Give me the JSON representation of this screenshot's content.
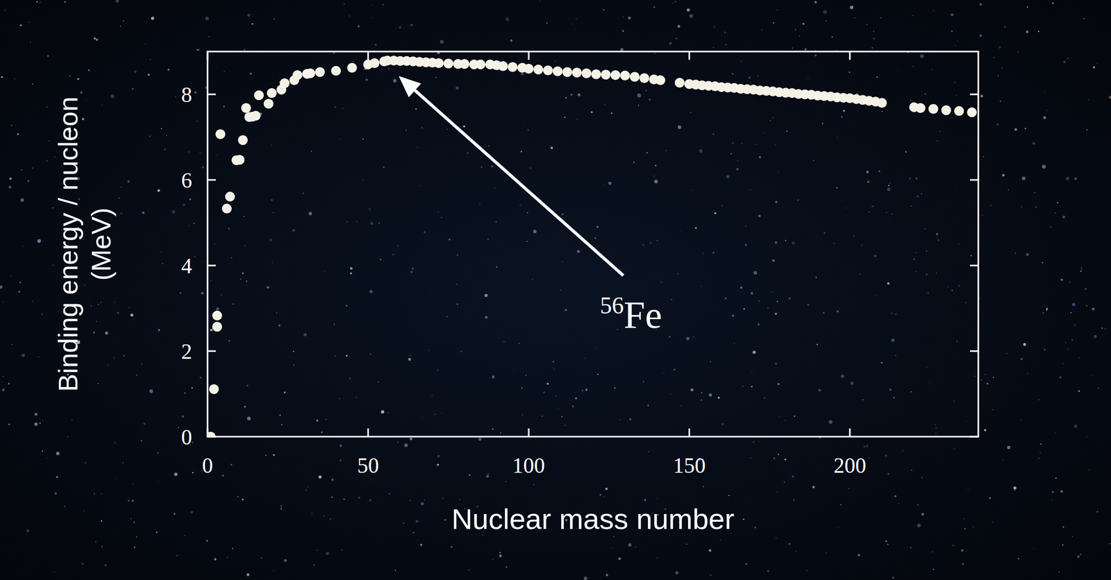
{
  "chart_data": {
    "type": "scatter",
    "x": [
      1,
      2,
      3,
      3,
      4,
      6,
      7,
      9,
      10,
      11,
      12,
      13,
      14,
      15,
      16,
      19,
      20,
      23,
      24,
      27,
      28,
      31,
      32,
      35,
      40,
      45,
      50,
      52,
      55,
      56,
      58,
      60,
      62,
      64,
      66,
      68,
      70,
      72,
      75,
      78,
      80,
      83,
      85,
      88,
      90,
      92,
      95,
      98,
      100,
      103,
      106,
      109,
      112,
      115,
      118,
      121,
      124,
      127,
      130,
      133,
      136,
      139,
      141,
      147,
      150,
      152,
      154,
      156,
      158,
      160,
      162,
      164,
      166,
      168,
      170,
      172,
      174,
      176,
      178,
      180,
      182,
      184,
      186,
      188,
      190,
      192,
      194,
      196,
      198,
      200,
      202,
      204,
      206,
      208,
      210,
      220,
      222,
      226,
      230,
      234,
      238
    ],
    "values": [
      0,
      1.11,
      2.83,
      2.57,
      7.07,
      5.33,
      5.61,
      6.46,
      6.47,
      6.93,
      7.68,
      7.47,
      7.48,
      7.5,
      7.98,
      7.78,
      8.03,
      8.11,
      8.26,
      8.33,
      8.45,
      8.48,
      8.49,
      8.52,
      8.55,
      8.62,
      8.7,
      8.73,
      8.77,
      8.79,
      8.79,
      8.78,
      8.78,
      8.77,
      8.76,
      8.75,
      8.74,
      8.73,
      8.72,
      8.71,
      8.71,
      8.7,
      8.7,
      8.7,
      8.68,
      8.66,
      8.64,
      8.62,
      8.6,
      8.58,
      8.56,
      8.54,
      8.52,
      8.51,
      8.49,
      8.47,
      8.46,
      8.45,
      8.44,
      8.41,
      8.38,
      8.35,
      8.33,
      8.27,
      8.24,
      8.23,
      8.21,
      8.2,
      8.19,
      8.17,
      8.16,
      8.15,
      8.13,
      8.12,
      8.11,
      8.09,
      8.08,
      8.07,
      8.05,
      8.04,
      8.03,
      8.01,
      8.0,
      7.99,
      7.97,
      7.96,
      7.95,
      7.93,
      7.92,
      7.91,
      7.89,
      7.87,
      7.85,
      7.83,
      7.8,
      7.7,
      7.68,
      7.66,
      7.63,
      7.61,
      7.58
    ],
    "color": "#f4f1e6",
    "marker": "circle",
    "xlim": [
      0,
      240
    ],
    "ylim": [
      0,
      9
    ],
    "xticks": [
      0,
      50,
      100,
      150,
      200
    ],
    "yticks": [
      0,
      2,
      4,
      6,
      8
    ],
    "xlabel": "Nuclear mass number",
    "ylabel": "Binding energy / nucleon (MeV)",
    "annotations": [
      {
        "text": "56Fe",
        "x": 56,
        "y": 8.79
      }
    ]
  }
}
